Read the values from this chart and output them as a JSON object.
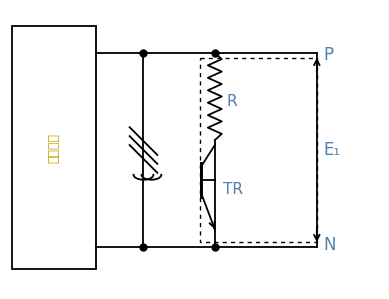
{
  "bg_color": "#ffffff",
  "line_color": "#000000",
  "label_color_korean": "#c8a000",
  "label_color_circuit": "#5080b0",
  "korean_text": "정유회로",
  "p_label": "P",
  "n_label": "N",
  "e1_label": "E₁",
  "r_label": "R",
  "tr_label": "TR"
}
